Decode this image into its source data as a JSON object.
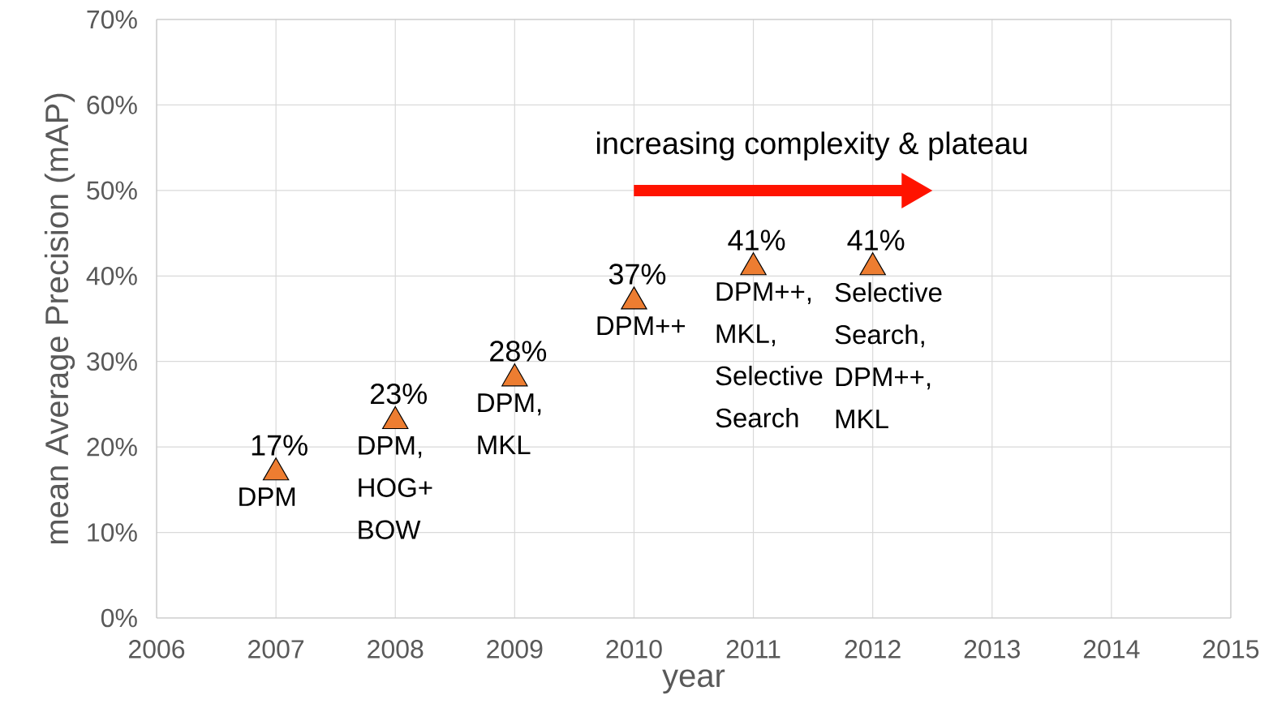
{
  "chart_data": {
    "type": "scatter",
    "xlabel": "year",
    "ylabel": "mean Average Precision (mAP)",
    "x": [
      2007,
      2008,
      2009,
      2010,
      2011,
      2012
    ],
    "values": [
      17,
      23,
      28,
      37,
      41,
      41
    ],
    "value_labels": [
      "17%",
      "23%",
      "28%",
      "37%",
      "41%",
      "41%"
    ],
    "color": "#ed7d31",
    "marker": "triangle",
    "grid": true,
    "xlim": [
      2006,
      2015
    ],
    "xticks": [
      2006,
      2007,
      2008,
      2009,
      2010,
      2011,
      2012,
      2013,
      2014,
      2015
    ],
    "ylim": [
      0,
      70
    ],
    "yticks": [
      {
        "value": 0,
        "label": "0%"
      },
      {
        "value": 10,
        "label": "10%"
      },
      {
        "value": 20,
        "label": "20%"
      },
      {
        "value": 30,
        "label": "30%"
      },
      {
        "value": 40,
        "label": "40%"
      },
      {
        "value": 50,
        "label": "50%"
      },
      {
        "value": 60,
        "label": "60%"
      },
      {
        "value": 70,
        "label": "70%"
      }
    ],
    "annotations": [
      "increasing complexity & plateau",
      {
        "text": "DPM",
        "x": 2007,
        "y": 17
      },
      {
        "text": "DPM, HOG+ BOW",
        "x": 2008,
        "y": 23
      },
      {
        "text": "DPM, MKL",
        "x": 2009,
        "y": 28
      },
      {
        "text": "DPM++",
        "x": 2010,
        "y": 37
      },
      {
        "text": "DPM++, MKL, Selective Search",
        "x": 2011,
        "y": 41
      },
      {
        "text": "Selective Search, DPM++, MKL",
        "x": 2012,
        "y": 41
      }
    ]
  }
}
